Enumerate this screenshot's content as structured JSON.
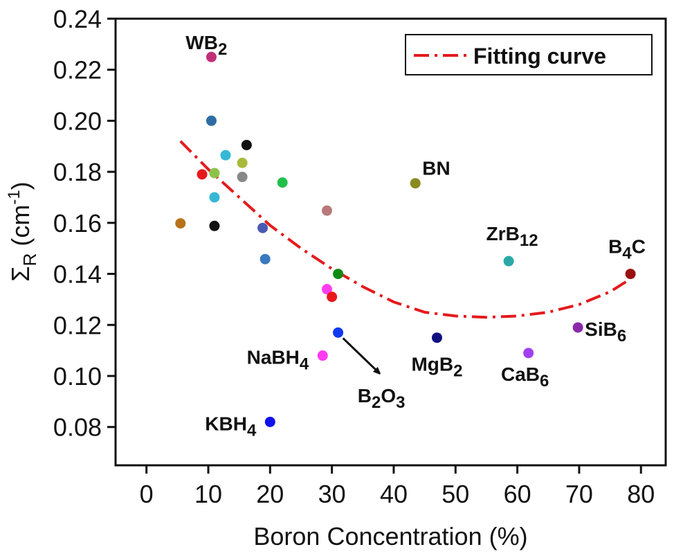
{
  "chart_data": {
    "type": "scatter",
    "xlabel": "Boron Concentration (%)",
    "ylabel": {
      "main": "Σ",
      "sub": "R",
      "unit_prefix": " (cm",
      "unit_sup": "-1",
      "unit_suffix": ")"
    },
    "xlim": [
      -5,
      84
    ],
    "ylim": [
      0.065,
      0.24
    ],
    "xticks": [
      0,
      10,
      20,
      30,
      40,
      50,
      60,
      70,
      80
    ],
    "yticks": [
      0.08,
      0.1,
      0.12,
      0.14,
      0.16,
      0.18,
      0.2,
      0.22,
      0.24
    ],
    "ytick_labels": [
      "0.08",
      "0.10",
      "0.12",
      "0.14",
      "0.16",
      "0.18",
      "0.20",
      "0.22",
      "0.24"
    ],
    "grid": false,
    "legend": {
      "position": "top-right",
      "label": "Fitting curve",
      "color": "#e41a1c",
      "style": "dash-dot"
    },
    "points": [
      {
        "x": 10.5,
        "y": 0.225,
        "color": "#c0307a"
      },
      {
        "x": 10.5,
        "y": 0.2,
        "color": "#2e6da4"
      },
      {
        "x": 12.8,
        "y": 0.1865,
        "color": "#35b8d6"
      },
      {
        "x": 16.2,
        "y": 0.1905,
        "color": "#111111"
      },
      {
        "x": 15.5,
        "y": 0.1835,
        "color": "#a8b83a"
      },
      {
        "x": 9.0,
        "y": 0.179,
        "color": "#e8191c"
      },
      {
        "x": 11.0,
        "y": 0.1795,
        "color": "#8bc34a"
      },
      {
        "x": 15.5,
        "y": 0.178,
        "color": "#888888"
      },
      {
        "x": 22.0,
        "y": 0.1758,
        "color": "#22c04a"
      },
      {
        "x": 11.0,
        "y": 0.17,
        "color": "#35b8d6"
      },
      {
        "x": 5.5,
        "y": 0.1598,
        "color": "#b8731a"
      },
      {
        "x": 11.0,
        "y": 0.1588,
        "color": "#111111"
      },
      {
        "x": 18.8,
        "y": 0.158,
        "color": "#4a5ab0"
      },
      {
        "x": 29.2,
        "y": 0.1648,
        "color": "#b87a7a"
      },
      {
        "x": 19.2,
        "y": 0.1458,
        "color": "#3a78c0"
      },
      {
        "x": 31.0,
        "y": 0.14,
        "color": "#128a12"
      },
      {
        "x": 29.2,
        "y": 0.134,
        "color": "#ff3cf0"
      },
      {
        "x": 30.0,
        "y": 0.131,
        "color": "#e8191c"
      },
      {
        "x": 43.5,
        "y": 0.1755,
        "color": "#8a8a20"
      },
      {
        "x": 58.6,
        "y": 0.145,
        "color": "#2aa8a8"
      },
      {
        "x": 78.3,
        "y": 0.14,
        "color": "#9a1010"
      },
      {
        "x": 31.0,
        "y": 0.117,
        "color": "#1238f0"
      },
      {
        "x": 47.0,
        "y": 0.115,
        "color": "#101080"
      },
      {
        "x": 69.8,
        "y": 0.119,
        "color": "#8a2aa8"
      },
      {
        "x": 61.8,
        "y": 0.109,
        "color": "#a040f0"
      },
      {
        "x": 28.5,
        "y": 0.108,
        "color": "#ff3cf0"
      },
      {
        "x": 20.0,
        "y": 0.082,
        "color": "#1010f0"
      }
    ],
    "fit_curve": {
      "x": [
        5.5,
        10,
        15,
        20,
        25,
        30,
        35,
        40,
        45,
        50,
        55,
        60,
        65,
        70,
        75,
        78.3
      ],
      "y": [
        0.192,
        0.181,
        0.17,
        0.159,
        0.15,
        0.142,
        0.135,
        0.129,
        0.125,
        0.1235,
        0.123,
        0.1235,
        0.125,
        0.128,
        0.133,
        0.138
      ]
    },
    "annotations": [
      {
        "key": "wb2",
        "main": "WB",
        "sub": "2",
        "x": 9.7,
        "y": 0.228,
        "anchor": "middle",
        "dx": 0,
        "dy": 0
      },
      {
        "key": "bn",
        "main": "BN",
        "sub": "",
        "x": 43.5,
        "y": 0.1755,
        "anchor": "start",
        "dx": 10,
        "dy": -12
      },
      {
        "key": "zrb12",
        "main": "ZrB",
        "sub": "12",
        "x": 58.6,
        "y": 0.145,
        "anchor": "middle",
        "dx": 5,
        "dy": -30
      },
      {
        "key": "b4c",
        "main": "B",
        "sub": "4",
        "tail": "C",
        "x": 78.3,
        "y": 0.14,
        "anchor": "middle",
        "dx": -5,
        "dy": -30
      },
      {
        "key": "sib6",
        "main": "SiB",
        "sub": "6",
        "x": 69.8,
        "y": 0.119,
        "anchor": "start",
        "dx": 10,
        "dy": 12
      },
      {
        "key": "cab6",
        "main": "CaB",
        "sub": "6",
        "x": 61.8,
        "y": 0.109,
        "anchor": "middle",
        "dx": -5,
        "dy": 40
      },
      {
        "key": "mgb2",
        "main": "MgB",
        "sub": "2",
        "x": 47.0,
        "y": 0.115,
        "anchor": "middle",
        "dx": 0,
        "dy": 48
      },
      {
        "key": "nabh4",
        "main": "NaBH",
        "sub": "4",
        "x": 28.5,
        "y": 0.108,
        "anchor": "end",
        "dx": -20,
        "dy": 12
      },
      {
        "key": "b2o3",
        "main": "B",
        "sub": "2",
        "tail": "O",
        "sub2": "3",
        "x": 38.0,
        "y": 0.1,
        "anchor": "middle",
        "dx": 0,
        "dy": 38
      },
      {
        "key": "kbh4",
        "main": "KBH",
        "sub": "4",
        "x": 20.0,
        "y": 0.082,
        "anchor": "end",
        "dx": -20,
        "dy": 12
      }
    ],
    "arrow": {
      "from": [
        31.8,
        0.1148
      ],
      "to": [
        37.5,
        0.1015
      ]
    }
  }
}
